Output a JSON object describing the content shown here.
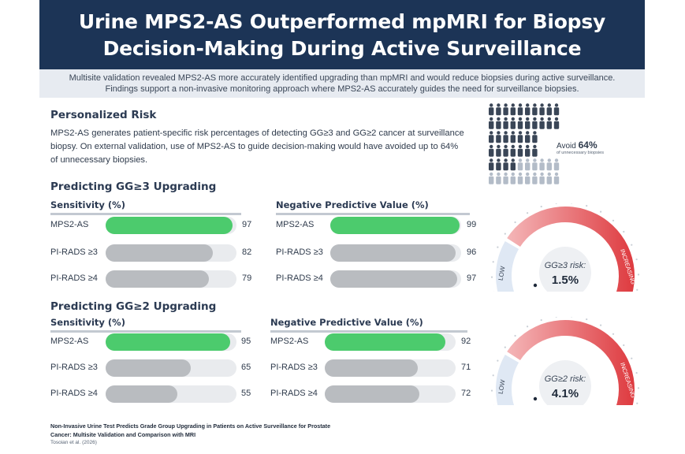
{
  "header": {
    "line1": "Urine MPS2-AS Outperformed mpMRI for Biopsy",
    "line2": "Decision-Making During Active Surveillance"
  },
  "summary": {
    "text": "Multisite validation revealed MPS2-AS more accurately identified upgrading than mpMRI and would reduce biopsies during active surveillance. Findings support a non-invasive monitoring approach where MPS2-AS accurately guides the need for surveillance biopsies."
  },
  "personalized": {
    "title": "Personalized Risk",
    "text": "MPS2-AS generates patient-specific risk percentages of detecting GG≥3 and GG≥2 cancer at surveillance biopsy. On external validation, use of MPS2-AS to guide decision-making would have avoided up to 64% of unnecessary biopsies.",
    "avoid_prefix": "Avoid ",
    "avoid_value": "64%",
    "avoid_sub": "of unnecessary biopsies",
    "avoid_fraction": 0.64
  },
  "colors": {
    "navy": "#1c3456",
    "green": "#4ccb6d",
    "grey_bar": "#b9bcc0",
    "track": "#e9ebee",
    "red": "#de3a3f",
    "low_blue": "#dfe8f4",
    "person_dark": "#3a4657",
    "person_light": "#b3bcc8"
  },
  "chart_data": [
    {
      "type": "bar",
      "title": "Predicting GG≥3 Upgrading",
      "panel": "Sensitivity (%)",
      "categories": [
        "MPS2-AS",
        "PI-RADS ≥3",
        "PI-RADS ≥4"
      ],
      "values": [
        97,
        82,
        79
      ],
      "value_labels": [
        "97",
        "82",
        "79"
      ],
      "ylim": [
        0,
        100
      ]
    },
    {
      "type": "bar",
      "title": "Predicting GG≥3 Upgrading",
      "panel": "Negative Predictive Value (%)",
      "categories": [
        "MPS2-AS",
        "PI-RADS ≥3",
        "PI-RADS ≥4"
      ],
      "values": [
        99,
        96,
        97
      ],
      "value_labels": [
        "99",
        "96",
        "97"
      ],
      "ylim": [
        0,
        100
      ]
    },
    {
      "type": "bar",
      "title": "Predicting GG≥2 Upgrading",
      "panel": "Sensitivity (%)",
      "categories": [
        "MPS2-AS",
        "PI-RADS ≥3",
        "PI-RADS ≥4"
      ],
      "values": [
        95,
        65,
        55
      ],
      "value_labels": [
        "95",
        "65",
        "55"
      ],
      "ylim": [
        0,
        100
      ]
    },
    {
      "type": "bar",
      "title": "Predicting GG≥2 Upgrading",
      "panel": "Negative Predictive Value (%)",
      "categories": [
        "MPS2-AS",
        "PI-RADS ≥3",
        "PI-RADS ≥4"
      ],
      "values": [
        92,
        71,
        72
      ],
      "value_labels": [
        "92",
        "71",
        "72"
      ],
      "ylim": [
        0,
        100
      ]
    }
  ],
  "gauges": [
    {
      "low_label": "LOW",
      "high_label": "INCREASING",
      "risk_label": "GG≥3 risk:",
      "risk_value": "1.5%"
    },
    {
      "low_label": "LOW",
      "high_label": "INCREASING",
      "risk_label": "GG≥2 risk:",
      "risk_value": "4.1%"
    }
  ],
  "citation": {
    "title": "Non-Invasive Urine Test Predicts Grade Group Upgrading in Patients on Active Surveillance for Prostate Cancer: Multisite Validation and Comparison with MRI",
    "authors": "Tosoian et al. (2026)"
  }
}
